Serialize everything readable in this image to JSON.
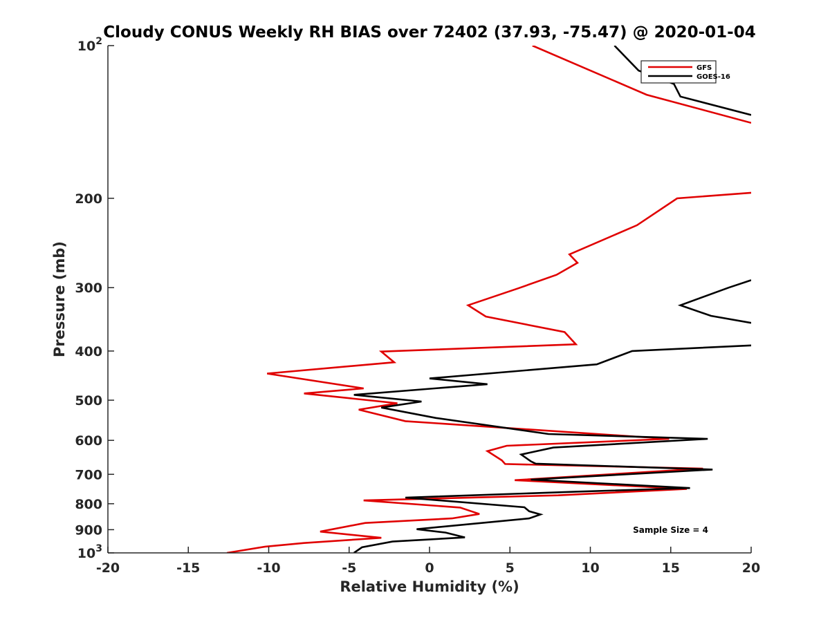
{
  "chart_data": {
    "type": "line",
    "title": "Cloudy CONUS Weekly RH BIAS over 72402 (37.93, -75.47) @ 2020-01-04",
    "xlabel": "Relative Humidity (%)",
    "ylabel": "Pressure (mb)",
    "xlim": [
      -20,
      20
    ],
    "ylim": [
      100,
      1000
    ],
    "y_scale": "log",
    "y_reversed": true,
    "x_ticks": [
      -20,
      -15,
      -10,
      -5,
      0,
      5,
      10,
      15,
      20
    ],
    "x_tick_labels": [
      "-20",
      "-15",
      "-10",
      "-5",
      "0",
      "5",
      "10",
      "15",
      "20"
    ],
    "y_ticks": [
      100,
      200,
      300,
      400,
      500,
      600,
      700,
      800,
      900,
      1000
    ],
    "y_tick_labels": [
      {
        "base": "10",
        "exp": "2"
      },
      {
        "base": "200",
        "exp": ""
      },
      {
        "base": "300",
        "exp": ""
      },
      {
        "base": "400",
        "exp": ""
      },
      {
        "base": "500",
        "exp": ""
      },
      {
        "base": "600",
        "exp": ""
      },
      {
        "base": "700",
        "exp": ""
      },
      {
        "base": "800",
        "exp": ""
      },
      {
        "base": "900",
        "exp": ""
      },
      {
        "base": "10",
        "exp": "3"
      }
    ],
    "grid": false,
    "legend_position": "top-right",
    "annotation": "Sample Size = 4",
    "series": [
      {
        "name": "GFS",
        "color": "#e00000",
        "segments": [
          [
            [
              6.4,
              100
            ],
            [
              13.5,
              125
            ],
            [
              20,
              142
            ]
          ],
          [
            [
              20,
              195
            ],
            [
              15.4,
              200
            ],
            [
              12.9,
              226
            ],
            [
              8.7,
              258
            ],
            [
              9.2,
              268
            ],
            [
              7.9,
              283
            ],
            [
              5.5,
              301
            ],
            [
              2.4,
              325
            ],
            [
              3.5,
              342
            ],
            [
              8.4,
              367
            ],
            [
              9.1,
              388
            ],
            [
              -3.0,
              401
            ],
            [
              -2.2,
              421
            ],
            [
              -10.1,
              443
            ],
            [
              -4.1,
              474
            ],
            [
              -7.8,
              485
            ],
            [
              -2.0,
              507
            ],
            [
              -4.4,
              522
            ],
            [
              -1.5,
              550
            ],
            [
              14.9,
              596
            ],
            [
              4.8,
              615
            ],
            [
              3.6,
              630
            ],
            [
              4.5,
              657
            ],
            [
              4.7,
              668
            ],
            [
              17.0,
              682
            ],
            [
              5.3,
              719
            ],
            [
              16.0,
              748
            ],
            [
              8.0,
              770
            ],
            [
              -4.1,
              788
            ],
            [
              1.9,
              814
            ],
            [
              3.1,
              838
            ],
            [
              1.4,
              855
            ],
            [
              -4.0,
              873
            ],
            [
              -6.8,
              908
            ],
            [
              -3.0,
              934
            ],
            [
              -7.8,
              956
            ],
            [
              -10.2,
              972
            ],
            [
              -12.6,
              1000
            ]
          ]
        ]
      },
      {
        "name": "GOES-16",
        "color": "#000000",
        "segments": [
          [
            [
              11.5,
              100
            ],
            [
              13.0,
              112
            ],
            [
              15.2,
              119
            ],
            [
              15.6,
              126
            ],
            [
              20,
              137
            ]
          ],
          [
            [
              20,
              290
            ],
            [
              18.6,
              300
            ],
            [
              15.6,
              325
            ],
            [
              17.5,
              341
            ],
            [
              20,
              352
            ]
          ],
          [
            [
              20,
              390
            ],
            [
              12.6,
              400
            ],
            [
              10.4,
              425
            ],
            [
              0.0,
              453
            ],
            [
              3.6,
              465
            ],
            [
              -4.7,
              488
            ],
            [
              -0.5,
              503
            ],
            [
              -3.0,
              517
            ],
            [
              0.4,
              542
            ],
            [
              7.4,
              583
            ],
            [
              17.3,
              596
            ],
            [
              7.7,
              620
            ],
            [
              5.7,
              640
            ],
            [
              6.3,
              660
            ],
            [
              6.6,
              667
            ],
            [
              17.6,
              685
            ],
            [
              6.3,
              717
            ],
            [
              16.2,
              745
            ],
            [
              9.3,
              757
            ],
            [
              -1.5,
              778
            ],
            [
              5.9,
              813
            ],
            [
              6.2,
              828
            ],
            [
              6.9,
              840
            ],
            [
              6.2,
              855
            ],
            [
              -0.8,
              898
            ],
            [
              1.0,
              912
            ],
            [
              2.2,
              932
            ],
            [
              -2.3,
              950
            ],
            [
              -4.2,
              975
            ],
            [
              -4.7,
              1000
            ]
          ]
        ]
      }
    ]
  }
}
